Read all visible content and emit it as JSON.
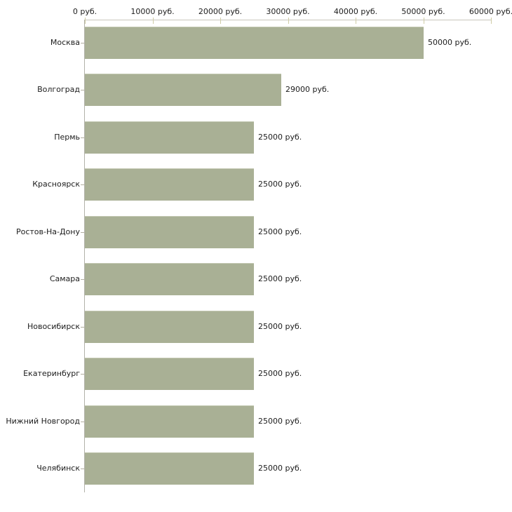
{
  "chart_data": {
    "type": "bar",
    "orientation": "horizontal",
    "unit_suffix": " руб.",
    "grid": false,
    "legend": null,
    "xlim": [
      0,
      60000
    ],
    "categories": [
      "Москва",
      "Волгоград",
      "Пермь",
      "Красноярск",
      "Ростов-На-Дону",
      "Самара",
      "Новосибирск",
      "Екатеринбург",
      "Нижний Новгород",
      "Челябинск"
    ],
    "values": [
      50000,
      29000,
      25000,
      25000,
      25000,
      25000,
      25000,
      25000,
      25000,
      25000
    ],
    "value_labels": [
      "50000 руб.",
      "29000 руб.",
      "25000 руб.",
      "25000 руб.",
      "25000 руб.",
      "25000 руб.",
      "25000 руб.",
      "25000 руб.",
      "25000 руб.",
      "25000 руб."
    ],
    "x_ticks": [
      {
        "value": 0,
        "label": "0 руб."
      },
      {
        "value": 10000,
        "label": "10000 руб."
      },
      {
        "value": 20000,
        "label": "20000 руб."
      },
      {
        "value": 30000,
        "label": "30000 руб."
      },
      {
        "value": 40000,
        "label": "40000 руб."
      },
      {
        "value": 50000,
        "label": "50000 руб."
      },
      {
        "value": 60000,
        "label": "60000 руб."
      }
    ],
    "colors": {
      "bar": "#a9b095",
      "bar_top_edge": "#c3c8b2",
      "x_axis_line": "#c8c7bc",
      "y_axis_line": "#b2b1a9",
      "tick_mark": "#cfcca6",
      "category_tick": "#b2afa0",
      "text": "#1c1c1c",
      "background": "#ffffff"
    }
  }
}
